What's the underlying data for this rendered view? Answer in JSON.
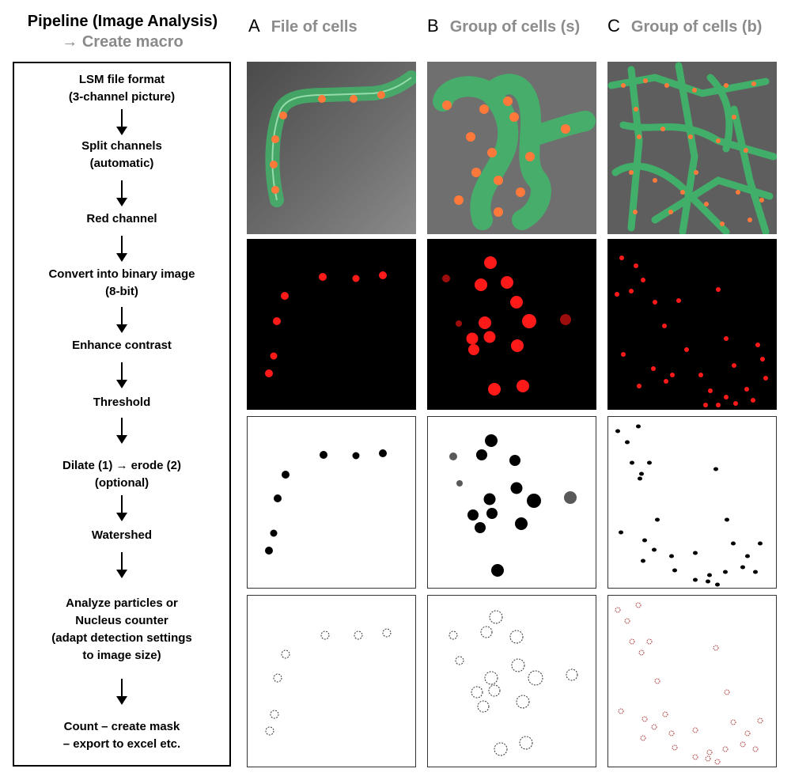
{
  "header": {
    "title": "Pipeline  (Image Analysis)",
    "subtitle": "→ Create macro"
  },
  "pipeline": {
    "steps": [
      "LSM file format",
      "(3-channel picture)",
      "Split channels",
      "(automatic)",
      "Red channel",
      "Convert into binary image",
      "(8-bit)",
      "Enhance contrast",
      "Threshold",
      "Dilate (1) → erode (2)",
      "(optional)",
      "Watershed",
      "Analyze particles or",
      "Nucleus counter",
      "(adapt detection settings",
      "to image size)",
      "Count – create mask",
      "– export to excel etc."
    ]
  },
  "columns": [
    {
      "letter": "A",
      "name": "File of cells"
    },
    {
      "letter": "B",
      "name": "Group of cells (s)"
    },
    {
      "letter": "C",
      "name": "Group of cells (b)"
    }
  ],
  "colors": {
    "nucleus_red": "#ff1a1a",
    "cell_green": "#2fc46a",
    "nucleus_orange": "#ff7a3a",
    "caption_gray": "#8c8c8c"
  }
}
